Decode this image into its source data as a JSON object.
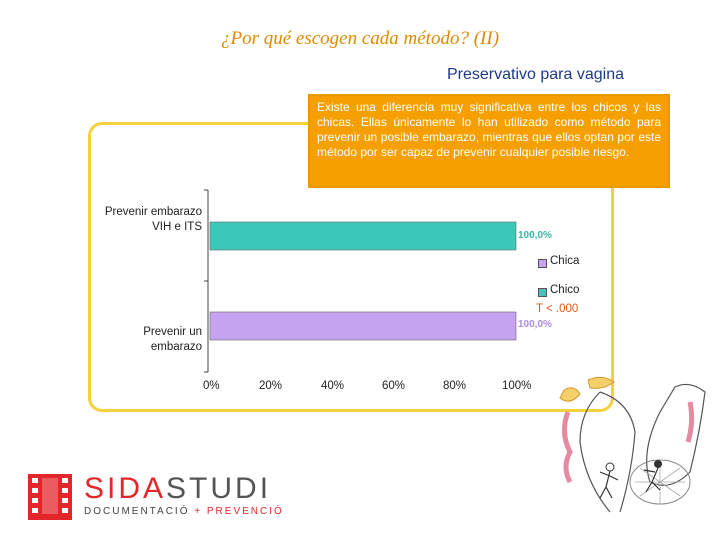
{
  "slide": {
    "title": "¿Por qué escogen cada método? (II)",
    "subtitle": "Preservativo para vagina",
    "note": "Existe una diferencia muy significativa entre los chicos y las chicas. Ellas únicamente lo han utilizado como método para prevenir un posible embarazo, mientras que ellos optan por este método por ser capaz de prevenir cualquier posible riesgo."
  },
  "chart_data": {
    "type": "bar",
    "orientation": "horizontal",
    "categories": [
      "Prevenir embarazo VIH e ITS",
      "Prevenir un embarazo"
    ],
    "series": [
      {
        "name": "Chica",
        "color": "#c6a3f0",
        "values": [
          0,
          100
        ]
      },
      {
        "name": "Chico",
        "color": "#3cc8b8",
        "values": [
          100,
          0
        ]
      }
    ],
    "data_labels": [
      "100,0%",
      "100,0%"
    ],
    "xlim": [
      0,
      100
    ],
    "x_ticks": [
      "0%",
      "20%",
      "40%",
      "60%",
      "80%",
      "100%"
    ],
    "annotation": "T < .000",
    "legend_position": "right",
    "grid": false
  },
  "logo": {
    "name_part1": "SIDA",
    "name_part2": "STUDI",
    "tagline_part1": "DOCUMENTACIÓ",
    "tagline_part2": "+ PREVENCIÓ"
  },
  "colors": {
    "title": "#e08a00",
    "subtitle": "#1e3a8a",
    "note_bg": "#f5a000",
    "frame": "#f5d23c",
    "logo_red": "#e3262a"
  }
}
